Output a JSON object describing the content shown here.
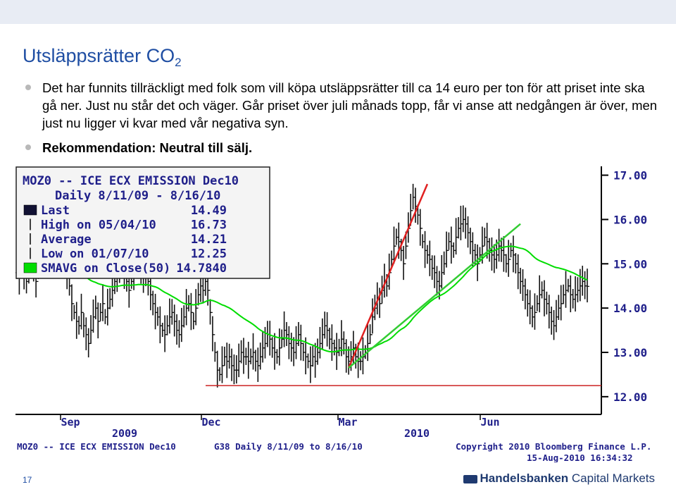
{
  "slide": {
    "title_main": "Utsläppsrätter CO",
    "title_sub": "2",
    "bullet1": "Det har funnits tillräckligt med folk som vill köpa utsläppsrätter till ca 14 euro per ton för att priset inte ska gå ner. Just nu står det och väger. Går priset över juli månads topp, får vi anse att nedgången är över, men just nu ligger vi kvar med vår negativa syn.",
    "bullet2": "Rekommendation: Neutral till sälj.",
    "page_number": "17",
    "brand_bold": "Handelsbanken",
    "brand_rest": " Capital Markets"
  },
  "colors": {
    "title": "#1f4ea3",
    "price_bars": "#111111",
    "sma": "#00dd00",
    "trendline_red": "#e02020",
    "support": "#cc2222",
    "trendline_green": "#33cc33",
    "legend_bg": "#f4f4f4",
    "brand": "#1f3a70"
  },
  "chart_data": {
    "type": "bar",
    "legend": {
      "header1": "MOZ0 -- ICE ECX EMISSION  Dec10",
      "header2": "Daily 8/11/09 - 8/16/10",
      "rows": [
        {
          "label": "Last",
          "value": "14.49",
          "swatch": "#111133"
        },
        {
          "label": "High on 05/04/10",
          "value": "16.73",
          "swatch": ""
        },
        {
          "label": "Average",
          "value": "14.21",
          "swatch": ""
        },
        {
          "label": "Low on 01/07/10",
          "value": "12.25",
          "swatch": ""
        },
        {
          "label": "SMAVG on Close(50)",
          "value": "14.7840",
          "swatch": "#00dd00"
        }
      ]
    },
    "y_ticks": [
      "17.00",
      "16.00",
      "15.00",
      "14.00",
      "13.00",
      "12.00"
    ],
    "ylim": [
      11.6,
      17.2
    ],
    "month_labels": [
      "Sep",
      "Dec",
      "Mar",
      "Jun"
    ],
    "year_labels": [
      "2009",
      "2010"
    ],
    "footer_left": "MOZ0 -- ICE ECX EMISSION  Dec10",
    "footer_mid": "G38  Daily 8/11/09 to 8/16/10",
    "copyright": "Copyright 2010 Bloomberg Finance L.P.",
    "timestamp": "15-Aug-2010 16:34:32",
    "series": [
      {
        "values": [
          14.8,
          14.7,
          15.0,
          14.8,
          14.6,
          14.9,
          15.1,
          14.9,
          14.6,
          14.9,
          15.2,
          15.4,
          15.1,
          14.9,
          15.3,
          15.5,
          15.2,
          15.0,
          15.3,
          15.4,
          15.1,
          14.8,
          14.5,
          14.1,
          13.9,
          13.7,
          13.6,
          13.9,
          13.6,
          13.4,
          13.2,
          13.5,
          13.8,
          14.0,
          13.7,
          13.9,
          14.1,
          13.8,
          14.0,
          14.2,
          14.4,
          14.6,
          14.7,
          14.9,
          15.0,
          14.8,
          14.6,
          14.4,
          14.6,
          14.8,
          14.9,
          15.1,
          14.8,
          14.7,
          14.8,
          14.6,
          14.3,
          14.1,
          13.9,
          13.8,
          13.6,
          13.5,
          13.4,
          13.6,
          13.8,
          13.9,
          13.7,
          13.5,
          13.4,
          13.6,
          13.8,
          14.0,
          14.1,
          13.9,
          13.7,
          14.0,
          14.3,
          14.5,
          14.4,
          14.6,
          14.4,
          13.9,
          13.4,
          13.0,
          12.6,
          12.5,
          12.7,
          12.9,
          12.8,
          12.9,
          12.7,
          12.6,
          12.6,
          12.8,
          13.0,
          12.9,
          12.9,
          12.8,
          12.9,
          13.0,
          12.8,
          12.7,
          12.9,
          13.1,
          13.2,
          13.4,
          13.3,
          13.1,
          13.0,
          12.9,
          13.1,
          13.3,
          13.5,
          13.4,
          13.2,
          13.1,
          13.0,
          13.2,
          13.4,
          13.2,
          13.0,
          12.9,
          12.8,
          12.7,
          12.9,
          12.8,
          13.0,
          13.2,
          13.4,
          13.6,
          13.5,
          13.3,
          13.2,
          13.1,
          13.0,
          13.1,
          13.3,
          13.2,
          12.9,
          12.8,
          12.9,
          13.1,
          12.9,
          12.8,
          12.8,
          12.9,
          13.0,
          13.2,
          13.4,
          13.8,
          14.0,
          14.2,
          14.1,
          14.4,
          14.6,
          14.5,
          14.8,
          15.1,
          15.4,
          15.6,
          15.5,
          15.3,
          15.0,
          15.4,
          15.8,
          16.2,
          16.5,
          16.3,
          16.1,
          15.8,
          15.5,
          15.3,
          15.2,
          15.1,
          14.9,
          14.8,
          14.6,
          14.5,
          14.8,
          15.0,
          15.3,
          15.5,
          15.4,
          15.3,
          15.6,
          15.8,
          15.9,
          16.0,
          15.9,
          15.7,
          15.5,
          15.3,
          15.2,
          15.0,
          15.2,
          15.4,
          15.6,
          15.5,
          15.3,
          15.2,
          15.1,
          15.2,
          15.4,
          15.3,
          15.2,
          15.0,
          15.1,
          15.3,
          15.2,
          15.0,
          14.8,
          14.6,
          14.5,
          14.3,
          14.1,
          14.0,
          13.8,
          13.9,
          14.1,
          14.3,
          14.4,
          14.2,
          14.1,
          13.9,
          13.7,
          13.6,
          13.8,
          14.0,
          14.1,
          14.3,
          14.4,
          14.5,
          14.3,
          14.2,
          14.3,
          14.4,
          14.5,
          14.6,
          14.5,
          14.49
        ]
      }
    ]
  }
}
